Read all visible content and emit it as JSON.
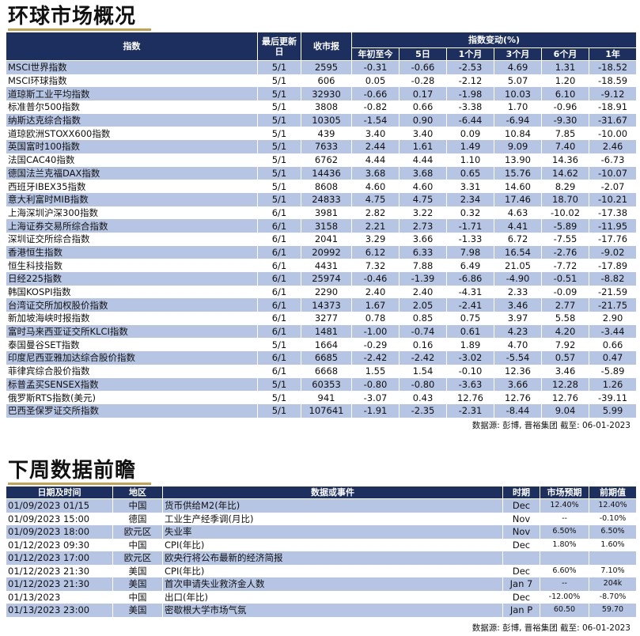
{
  "section1": {
    "title": "环球市场概况"
  },
  "section2": {
    "title": "下周数据前瞻"
  },
  "market_table": {
    "headers": {
      "index": "指数",
      "last_update": "最后更新日",
      "close": "收市报",
      "change_group": "指数变动(%)",
      "ytd": "年初至今",
      "d5": "5日",
      "m1": "1个月",
      "m3": "3个月",
      "m6": "6个月",
      "y1": "1年"
    },
    "rows": [
      [
        "MSCI世界指数",
        "5/1",
        "2595",
        "-0.31",
        "-0.66",
        "-2.53",
        "4.69",
        "1.31",
        "-18.52"
      ],
      [
        "MSCI环球指数",
        "5/1",
        "606",
        "0.05",
        "-0.28",
        "-2.12",
        "5.07",
        "1.20",
        "-18.59"
      ],
      [
        "道琼斯工业平均指数",
        "5/1",
        "32930",
        "-0.66",
        "0.17",
        "-1.98",
        "10.03",
        "6.10",
        "-9.12"
      ],
      [
        "标准普尔500指数",
        "5/1",
        "3808",
        "-0.82",
        "0.66",
        "-3.38",
        "1.70",
        "-0.96",
        "-18.91"
      ],
      [
        "纳斯达克综合指数",
        "5/1",
        "10305",
        "-1.54",
        "0.90",
        "-6.44",
        "-6.94",
        "-9.30",
        "-31.67"
      ],
      [
        "道琼欧洲STOXX600指数",
        "5/1",
        "439",
        "3.40",
        "3.40",
        "0.09",
        "10.84",
        "7.85",
        "-10.00"
      ],
      [
        "英国富时100指数",
        "5/1",
        "7633",
        "2.44",
        "1.61",
        "1.49",
        "9.09",
        "7.40",
        "2.46"
      ],
      [
        "法国CAC40指数",
        "5/1",
        "6762",
        "4.44",
        "4.44",
        "1.10",
        "13.90",
        "14.36",
        "-6.73"
      ],
      [
        "德国法兰克福DAX指数",
        "5/1",
        "14436",
        "3.68",
        "3.68",
        "0.65",
        "15.76",
        "14.62",
        "-10.07"
      ],
      [
        "西班牙IBEX35指数",
        "5/1",
        "8608",
        "4.60",
        "4.60",
        "3.31",
        "14.60",
        "8.29",
        "-2.07"
      ],
      [
        "意大利富时MIB指数",
        "5/1",
        "24833",
        "4.75",
        "4.75",
        "2.34",
        "17.46",
        "18.70",
        "-10.21"
      ],
      [
        "上海深圳沪深300指数",
        "6/1",
        "3981",
        "2.82",
        "3.22",
        "0.32",
        "4.63",
        "-10.02",
        "-17.38"
      ],
      [
        "上海证券交易所综合指数",
        "6/1",
        "3158",
        "2.21",
        "2.73",
        "-1.71",
        "4.41",
        "-5.89",
        "-11.95"
      ],
      [
        "深圳证交所综合指数",
        "6/1",
        "2041",
        "3.29",
        "3.66",
        "-1.33",
        "6.72",
        "-7.55",
        "-17.76"
      ],
      [
        "香港恒生指数",
        "6/1",
        "20992",
        "6.12",
        "6.33",
        "7.98",
        "16.54",
        "-2.76",
        "-9.02"
      ],
      [
        "恒生科技指数",
        "6/1",
        "4431",
        "7.32",
        "7.88",
        "6.49",
        "21.05",
        "-7.72",
        "-17.89"
      ],
      [
        "日经225指数",
        "6/1",
        "25974",
        "-0.46",
        "-1.39",
        "-6.86",
        "-4.90",
        "-0.51",
        "-8.82"
      ],
      [
        "韩国KOSPI指数",
        "6/1",
        "2290",
        "2.40",
        "2.40",
        "-4.31",
        "2.33",
        "-0.09",
        "-21.59"
      ],
      [
        "台湾证交所加权股价指数",
        "6/1",
        "14373",
        "1.67",
        "2.05",
        "-2.41",
        "3.46",
        "2.77",
        "-21.75"
      ],
      [
        "新加坡海峡时报指数",
        "6/1",
        "3277",
        "0.78",
        "0.85",
        "0.75",
        "3.97",
        "5.58",
        "2.90"
      ],
      [
        "富时马来西亚证交所KLCI指数",
        "6/1",
        "1481",
        "-1.00",
        "-0.74",
        "0.61",
        "4.23",
        "4.20",
        "-3.44"
      ],
      [
        "泰国曼谷SET指数",
        "5/1",
        "1664",
        "-0.29",
        "0.16",
        "1.89",
        "4.70",
        "7.92",
        "0.66"
      ],
      [
        "印度尼西亚雅加达综合股价指数",
        "6/1",
        "6685",
        "-2.42",
        "-2.42",
        "-3.02",
        "-5.54",
        "0.57",
        "0.47"
      ],
      [
        "菲律宾综合股价指数",
        "6/1",
        "6668",
        "1.55",
        "1.54",
        "-0.10",
        "12.36",
        "3.46",
        "-5.89"
      ],
      [
        "标普孟买SENSEX指数",
        "5/1",
        "60353",
        "-0.80",
        "-0.80",
        "-3.63",
        "3.66",
        "12.28",
        "1.26"
      ],
      [
        "俄罗斯RTS指数(美元)",
        "5/1",
        "941",
        "-3.07",
        "0.43",
        "12.76",
        "12.76",
        "12.76",
        "-39.11"
      ],
      [
        "巴西圣保罗证交所指数",
        "5/1",
        "107641",
        "-1.91",
        "-2.35",
        "-2.31",
        "-8.44",
        "9.04",
        "5.99"
      ]
    ],
    "source": "数据源: 彭博, 晋裕集团 截至: 06-01-2023"
  },
  "calendar_table": {
    "headers": {
      "datetime": "日期及时间",
      "region": "地区",
      "event": "数据或事件",
      "period": "时期",
      "expected": "市场预期",
      "previous": "前期值"
    },
    "rows": [
      [
        "01/09/2023 01/15",
        "中国",
        "货币供给M2(年比)",
        "Dec",
        "12.40%",
        "12.40%"
      ],
      [
        "01/09/2023 15:00",
        "德国",
        "工业生产经季调(月比)",
        "Nov",
        "--",
        "-0.10%"
      ],
      [
        "01/09/2023 18:00",
        "欧元区",
        "失业率",
        "Nov",
        "6.50%",
        "6.50%"
      ],
      [
        "01/12/2023 09:30",
        "中国",
        "CPI(年比)",
        "Dec",
        "1.80%",
        "1.60%"
      ],
      [
        "01/12/2023 17:00",
        "欧元区",
        "欧央行将公布最新的经济简报",
        "",
        "",
        ""
      ],
      [
        "01/12/2023 21:30",
        "美国",
        "CPI(年比)",
        "Dec",
        "6.60%",
        "7.10%"
      ],
      [
        "01/12/2023 21:30",
        "美国",
        "首次申请失业救济金人数",
        "Jan 7",
        "--",
        "204k"
      ],
      [
        "01/13/2023",
        "中国",
        "出口(年比)",
        "Dec",
        "-12.00%",
        "-8.70%"
      ],
      [
        "01/13/2023 23:00",
        "美国",
        "密歇根大学市场气氛",
        "Jan P",
        "60.50",
        "59.70"
      ]
    ],
    "source": "数据源: 彭博, 晋裕集团 截至: 06-01-2023"
  }
}
